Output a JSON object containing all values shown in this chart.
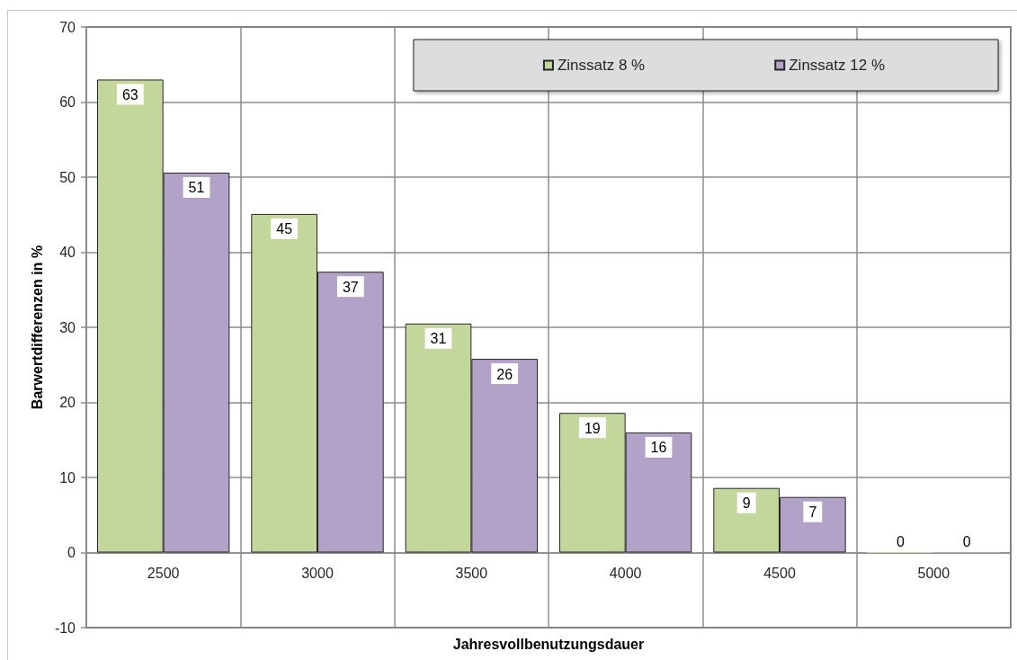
{
  "chart_data": {
    "type": "bar",
    "xlabel": "Jahresvollbenutzungsdauer",
    "ylabel": "Barwertdifferenzen in %",
    "categories": [
      "2500",
      "3000",
      "3500",
      "4000",
      "4500",
      "5000"
    ],
    "series": [
      {
        "name": "Zinssatz 8 %",
        "color": "#c3d69b",
        "values": [
          63.0,
          45.1,
          30.5,
          18.6,
          8.6,
          0
        ],
        "value_labels": [
          "63",
          "45",
          "31",
          "19",
          "9",
          "0"
        ]
      },
      {
        "name": "Zinssatz 12 %",
        "color": "#b3a2c7",
        "values": [
          50.6,
          37.4,
          25.8,
          16.0,
          7.4,
          0
        ],
        "value_labels": [
          "51",
          "37",
          "26",
          "16",
          "7",
          "0"
        ]
      }
    ],
    "ylim": [
      -10,
      70
    ],
    "yticks": [
      -10,
      0,
      10,
      20,
      30,
      40,
      50,
      60,
      70
    ],
    "grid": true,
    "legend": "top right"
  }
}
